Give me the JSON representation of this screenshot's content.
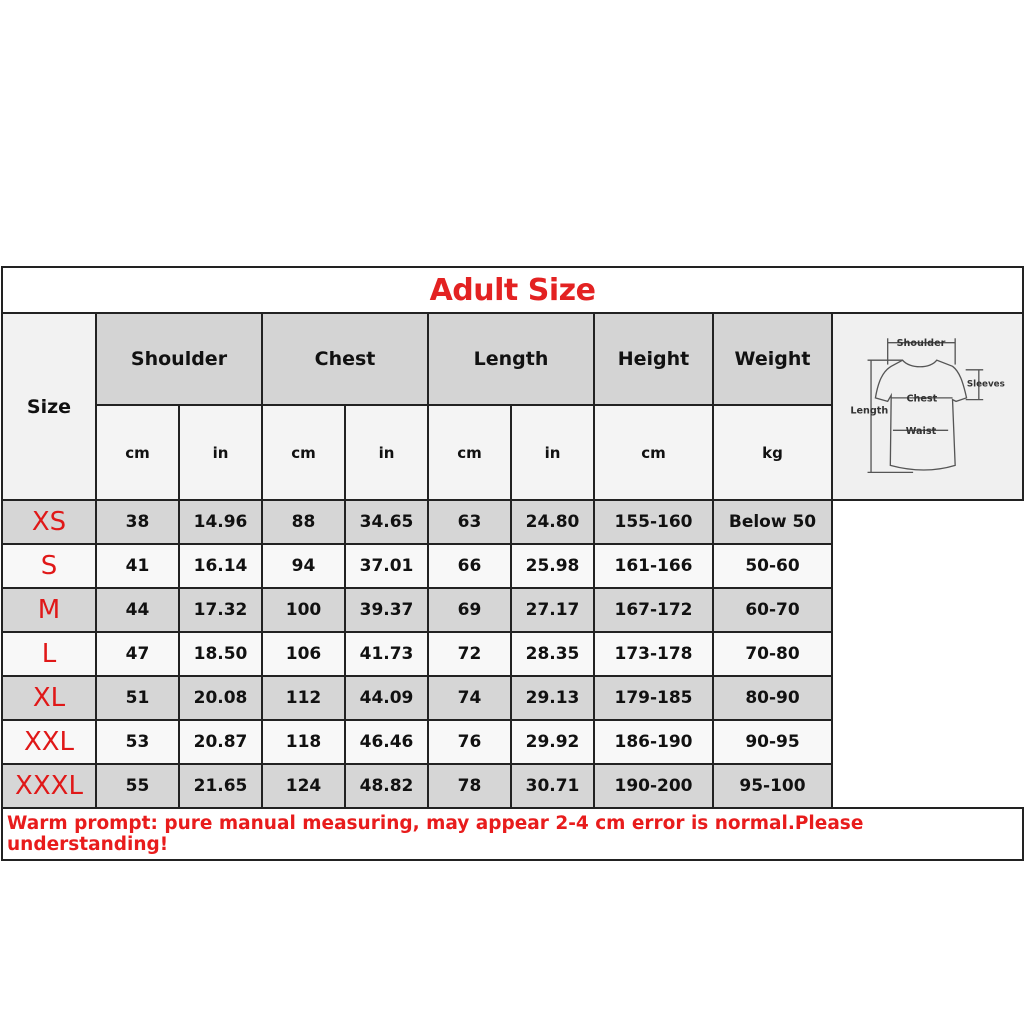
{
  "title": "Adult Size",
  "headers": {
    "size": "Size",
    "shoulder": "Shoulder",
    "chest": "Chest",
    "length": "Length",
    "height": "Height",
    "weight": "Weight"
  },
  "units": [
    "cm",
    "in",
    "cm",
    "in",
    "cm",
    "in",
    "cm",
    "kg"
  ],
  "rows": [
    {
      "size": "XS",
      "values": [
        "38",
        "14.96",
        "88",
        "34.65",
        "63",
        "24.80",
        "155-160",
        "Below 50"
      ]
    },
    {
      "size": "S",
      "values": [
        "41",
        "16.14",
        "94",
        "37.01",
        "66",
        "25.98",
        "161-166",
        "50-60"
      ]
    },
    {
      "size": "M",
      "values": [
        "44",
        "17.32",
        "100",
        "39.37",
        "69",
        "27.17",
        "167-172",
        "60-70"
      ]
    },
    {
      "size": "L",
      "values": [
        "47",
        "18.50",
        "106",
        "41.73",
        "72",
        "28.35",
        "173-178",
        "70-80"
      ]
    },
    {
      "size": "XL",
      "values": [
        "51",
        "20.08",
        "112",
        "44.09",
        "74",
        "29.13",
        "179-185",
        "80-90"
      ]
    },
    {
      "size": "XXL",
      "values": [
        "53",
        "20.87",
        "118",
        "46.46",
        "76",
        "29.92",
        "186-190",
        "90-95"
      ]
    },
    {
      "size": "XXXL",
      "values": [
        "55",
        "21.65",
        "124",
        "48.82",
        "78",
        "30.71",
        "190-200",
        "95-100"
      ]
    }
  ],
  "diagram": {
    "labels": {
      "shoulder": "Shoulder",
      "sleeves": "Sleeves",
      "chest": "Chest",
      "length": "Length",
      "waist": "Waist"
    }
  },
  "footer": "Warm prompt: pure manual measuring, may appear 2-4 cm error is normal.Please understanding!",
  "colors": {
    "accent": "#e32222",
    "header_bg": "#d4d4d4",
    "row_gray": "#d6d6d6"
  }
}
